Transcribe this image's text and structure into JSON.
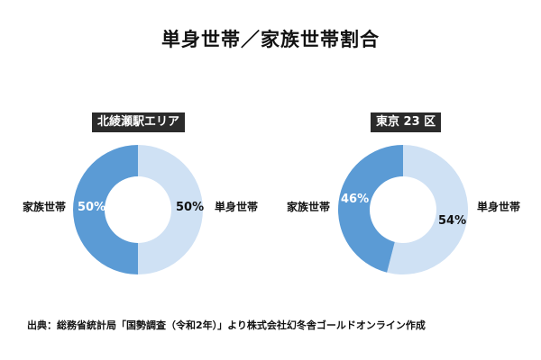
{
  "title": "単身世帯／家族世帯割合",
  "colors": {
    "family": "#5b9bd5",
    "single": "#cfe1f4",
    "badge_bg": "#2b2b2b"
  },
  "charts": [
    {
      "label": "北綾瀬駅エリア",
      "left_label": "家族世帯",
      "right_label": "単身世帯",
      "family_pct_text": "50%",
      "single_pct_text": "50%"
    },
    {
      "label": "東京 23 区",
      "left_label": "家族世帯",
      "right_label": "単身世帯",
      "family_pct_text": "46%",
      "single_pct_text": "54%"
    }
  ],
  "source": "出典：総務省統計局「国勢調査（令和2年）」より株式会社幻冬舎ゴールドオンライン作成",
  "chart_data": [
    {
      "type": "pie",
      "subtype": "donut",
      "title": "北綾瀬駅エリア",
      "categories": [
        "単身世帯",
        "家族世帯"
      ],
      "values": [
        50,
        50
      ],
      "unit": "%",
      "colors": [
        "#cfe1f4",
        "#5b9bd5"
      ]
    },
    {
      "type": "pie",
      "subtype": "donut",
      "title": "東京 23 区",
      "categories": [
        "単身世帯",
        "家族世帯"
      ],
      "values": [
        54,
        46
      ],
      "unit": "%",
      "colors": [
        "#cfe1f4",
        "#5b9bd5"
      ]
    }
  ]
}
